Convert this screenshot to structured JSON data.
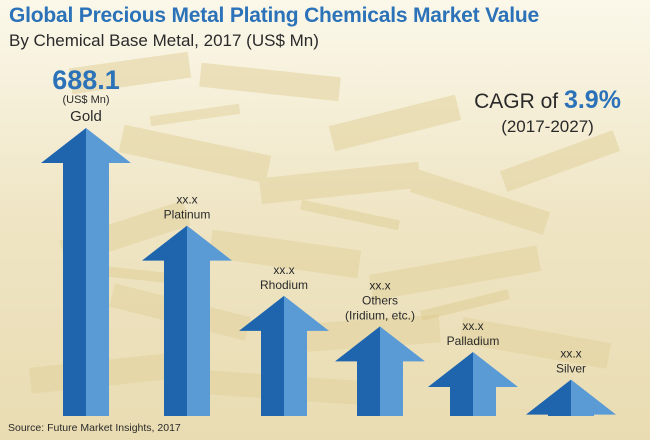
{
  "header": {
    "title": "Global Precious Metal Plating Chemicals Market Value",
    "subtitle": "By Chemical Base Metal, 2017 (US$ Mn)"
  },
  "cagr": {
    "prefix": "CAGR of",
    "value": "3.9%",
    "period": "(2017-2027)"
  },
  "source": "Source: Future Market Insights, 2017",
  "colors": {
    "arrow_dark": "#1f65ae",
    "arrow_light": "#5b9bd5",
    "title": "#2b72b8"
  },
  "chart_data": {
    "type": "bar",
    "title": "Global Precious Metal Plating Chemicals Market Value",
    "subtitle": "By Chemical Base Metal, 2017 (US$ Mn)",
    "xlabel": "",
    "ylabel": "",
    "categories": [
      "Gold",
      "Platinum",
      "Rhodium",
      "Others (Iridium, etc.)",
      "Palladium",
      "Silver"
    ],
    "values": [
      688.1,
      455,
      287,
      214,
      153,
      87
    ],
    "ylim": [
      0,
      688.1
    ],
    "grid": false,
    "legend": "none",
    "bars": [
      {
        "category": "Gold",
        "value_label": "688.1",
        "unit_label": "(US$ Mn)",
        "name_lines": [
          "Gold"
        ]
      },
      {
        "category": "Platinum",
        "value_label": "xx.x",
        "unit_label": "",
        "name_lines": [
          "Platinum"
        ]
      },
      {
        "category": "Rhodium",
        "value_label": "xx.x",
        "unit_label": "",
        "name_lines": [
          "Rhodium"
        ]
      },
      {
        "category": "Others (Iridium, etc.)",
        "value_label": "xx.x",
        "unit_label": "",
        "name_lines": [
          "Others",
          "(Iridium, etc.)"
        ]
      },
      {
        "category": "Palladium",
        "value_label": "xx.x",
        "unit_label": "",
        "name_lines": [
          "Palladium"
        ]
      },
      {
        "category": "Silver",
        "value_label": "xx.x",
        "unit_label": "",
        "name_lines": [
          "Silver"
        ]
      }
    ]
  }
}
